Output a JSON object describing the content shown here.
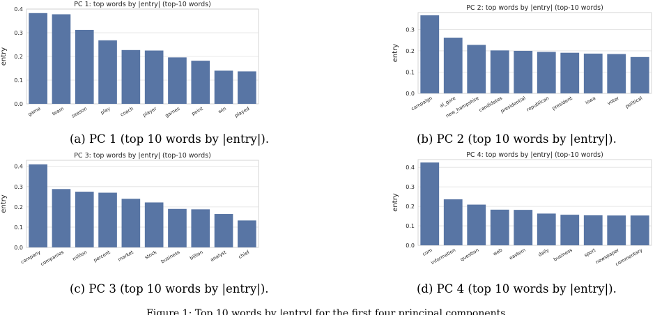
{
  "chart_data": [
    {
      "type": "bar",
      "title": "PC 1: top words by |entry| (top-10 words)",
      "xlabel": "",
      "ylabel": "entry",
      "ylim": [
        0,
        0.4
      ],
      "yticks": [
        "0.0",
        "0.1",
        "0.2",
        "0.3",
        "0.4"
      ],
      "grid": true,
      "bar_color": "#5875a4",
      "categories": [
        "game",
        "team",
        "season",
        "play",
        "coach",
        "player",
        "games",
        "point",
        "win",
        "played"
      ],
      "values": [
        0.383,
        0.378,
        0.312,
        0.268,
        0.227,
        0.225,
        0.196,
        0.182,
        0.14,
        0.137
      ],
      "caption": "(a) PC 1 (top 10 words by |entry|)."
    },
    {
      "type": "bar",
      "title": "PC 2: top words by |entry| (top-10 words)",
      "xlabel": "",
      "ylabel": "entry",
      "ylim": [
        0,
        0.38
      ],
      "yticks": [
        "0.0",
        "0.1",
        "0.2",
        "0.3"
      ],
      "grid": true,
      "bar_color": "#5875a4",
      "categories": [
        "campaign",
        "al_gore",
        "new_hampshire",
        "candidates",
        "presidential",
        "republican",
        "president",
        "iowa",
        "voter",
        "political"
      ],
      "values": [
        0.367,
        0.262,
        0.228,
        0.202,
        0.2,
        0.195,
        0.191,
        0.187,
        0.185,
        0.171
      ],
      "caption": "(b) PC 2 (top 10 words by |entry|)."
    },
    {
      "type": "bar",
      "title": "PC 3: top words by |entry| (top-10 words)",
      "xlabel": "",
      "ylabel": "entry",
      "ylim": [
        0,
        0.43
      ],
      "yticks": [
        "0.0",
        "0.1",
        "0.2",
        "0.3",
        "0.4"
      ],
      "grid": true,
      "bar_color": "#5875a4",
      "categories": [
        "company",
        "companies",
        "million",
        "percent",
        "market",
        "stock",
        "business",
        "billion",
        "analyst",
        "chief"
      ],
      "values": [
        0.41,
        0.288,
        0.275,
        0.27,
        0.24,
        0.222,
        0.19,
        0.188,
        0.165,
        0.133
      ],
      "caption": "(c) PC 3 (top 10 words by |entry|)."
    },
    {
      "type": "bar",
      "title": "PC 4: top words by |entry| (top-10 words)",
      "xlabel": "",
      "ylabel": "entry",
      "ylim": [
        0,
        0.44
      ],
      "yticks": [
        "0.0",
        "0.1",
        "0.2",
        "0.3",
        "0.4"
      ],
      "grid": true,
      "bar_color": "#5875a4",
      "categories": [
        "com",
        "information",
        "question",
        "web",
        "eastern",
        "daily",
        "business",
        "sport",
        "newspaper",
        "commentary"
      ],
      "values": [
        0.425,
        0.236,
        0.209,
        0.183,
        0.182,
        0.163,
        0.157,
        0.154,
        0.153,
        0.153
      ],
      "caption": "(d) PC 4 (top 10 words by |entry|)."
    }
  ],
  "figure_caption": "Figure 1: Top 10 words by |entry| for the first four principal components."
}
